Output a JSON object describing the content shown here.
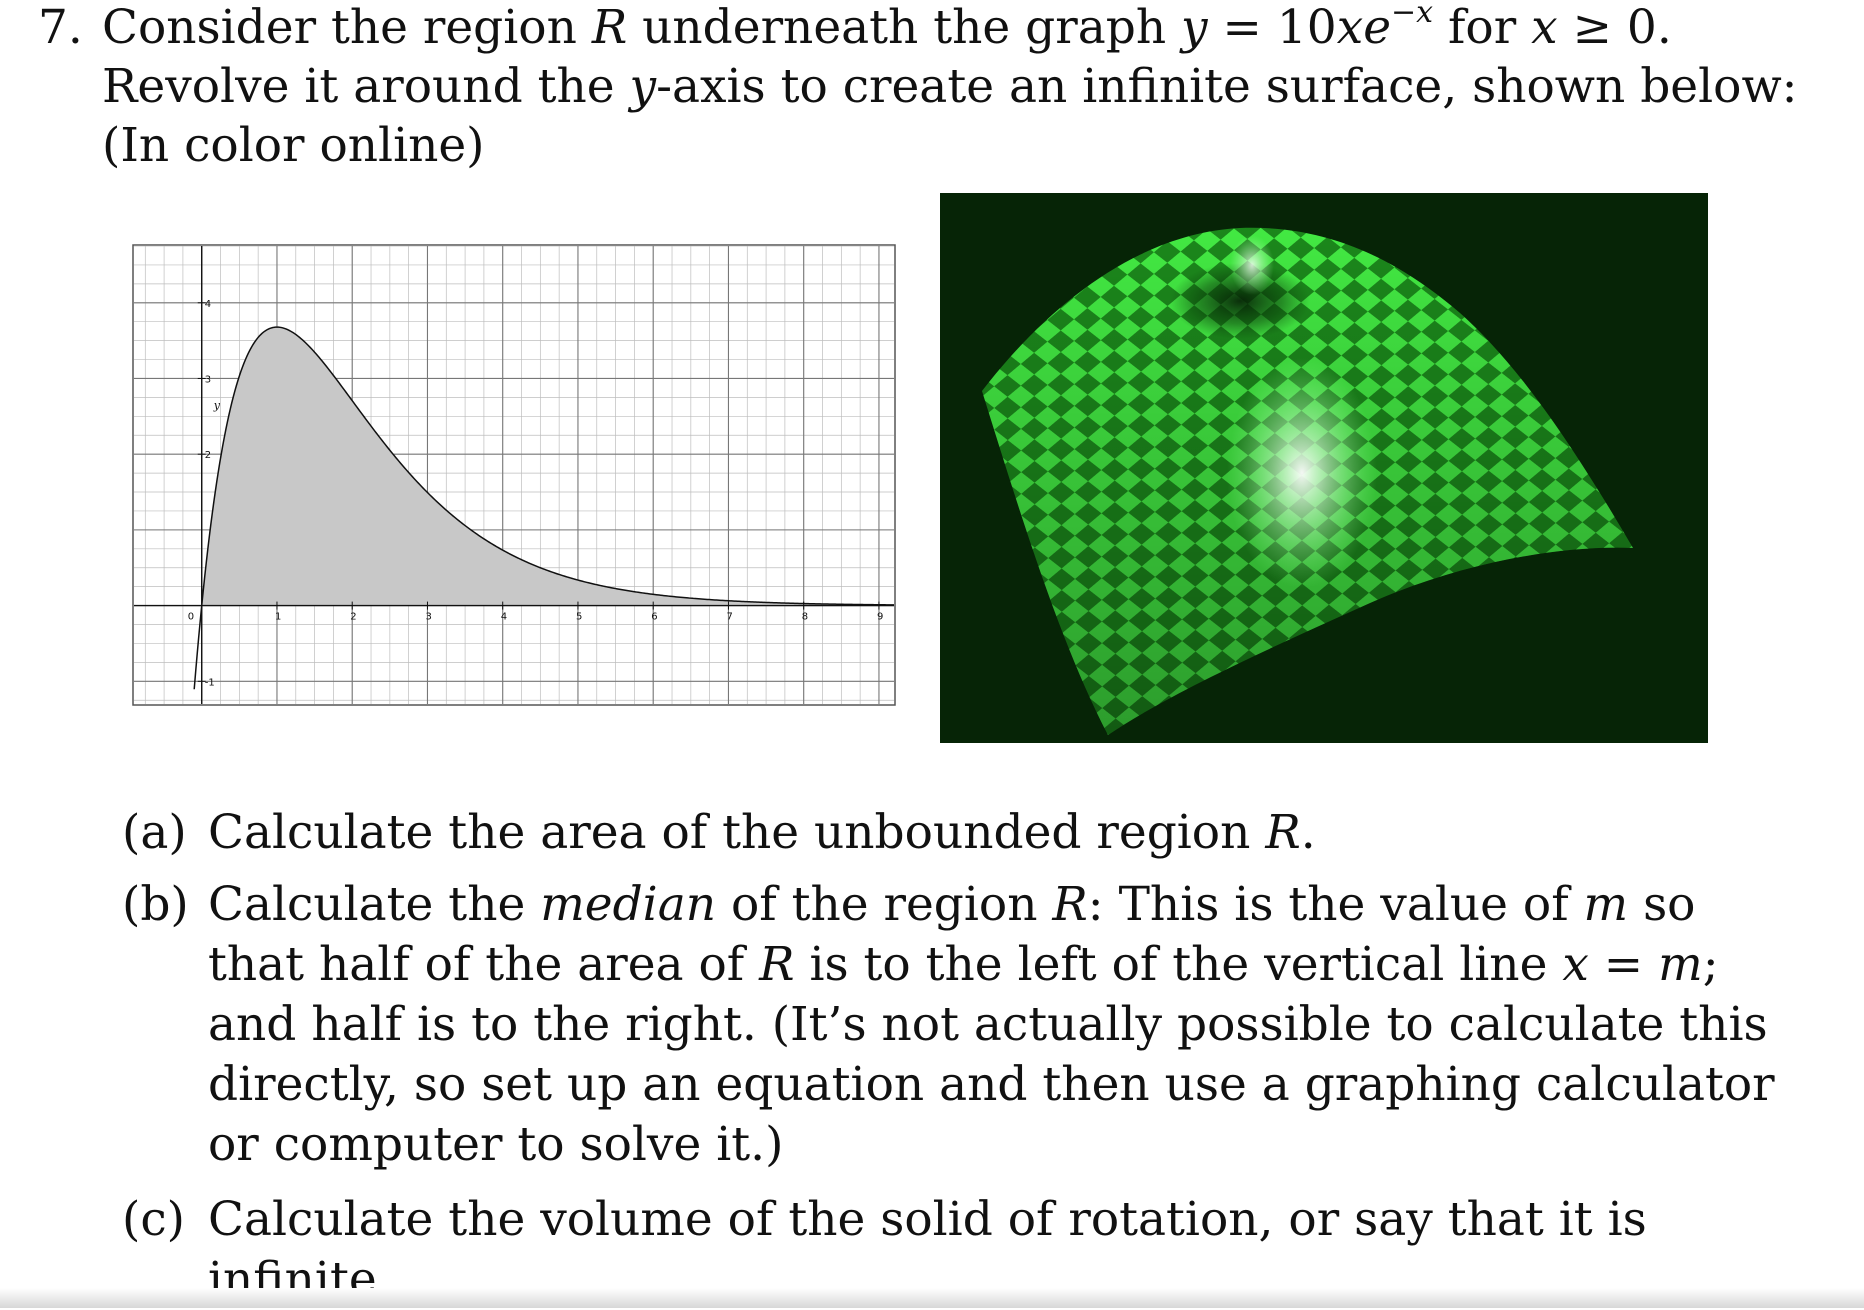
{
  "problem": {
    "number": "7.",
    "l1": {
      "a": "Consider the region ",
      "R": "R",
      "b": " underneath the graph ",
      "y": "y",
      "eq": " = 10",
      "x": "x",
      "e": "e",
      "sup": "−x",
      "c": " for ",
      "x2": "x",
      "d": " ≥ 0."
    },
    "l2": {
      "a": "Revolve it around the ",
      "y": "y",
      "b": "-axis to create an infinite surface, shown below:"
    },
    "l3": "(In color online)"
  },
  "figure_graph": {
    "chart_data": {
      "type": "area",
      "function": "y = 10x e^(-x)",
      "x_ticks": [
        "0",
        "1",
        "2",
        "3",
        "4",
        "5",
        "6",
        "7",
        "8",
        "9"
      ],
      "y_ticks": [
        "4",
        "3",
        "2",
        "-1"
      ],
      "y_axis_label": "y",
      "xlim": [
        -0.9,
        9.2
      ],
      "ylim": [
        -1.3,
        4.75
      ],
      "fill": "#c8c8c8",
      "x": [
        0,
        0.25,
        0.5,
        1,
        1.5,
        2,
        3,
        4,
        5,
        6,
        7,
        8,
        9
      ],
      "y": [
        0,
        1.95,
        3.03,
        3.68,
        3.35,
        2.71,
        1.49,
        0.73,
        0.34,
        0.15,
        0.06,
        0.03,
        0.01
      ]
    }
  },
  "figure_surface": {
    "background": "#062406",
    "checker_light": "#44ee44",
    "checker_dark": "#1c8a1c"
  },
  "parts": [
    {
      "label": "(a)",
      "lines": [
        {
          "a": "Calculate the area of the unbounded region ",
          "R": "R",
          "b": "."
        }
      ]
    },
    {
      "label": "(b)",
      "lines": [
        {
          "a": "Calculate the ",
          "em": "median",
          "b": " of the region ",
          "R": "R",
          "c": ": This is the value of ",
          "m": "m",
          "d": " so"
        },
        {
          "a": "that half of the area of ",
          "R": "R",
          "b": " is to the left of the vertical line ",
          "x": "x",
          "eq": " = ",
          "m": "m",
          "c": ";"
        },
        {
          "a": "and half is to the right. (It’s not actually possible to calculate this"
        },
        {
          "a": "directly, so set up an equation and then use a graphing calculator"
        },
        {
          "a": "or computer to solve it.)"
        }
      ]
    },
    {
      "label": "(c)",
      "lines": [
        {
          "a": "Calculate the volume of the solid of rotation, or say that it is"
        },
        {
          "a": "infinite."
        }
      ]
    }
  ]
}
